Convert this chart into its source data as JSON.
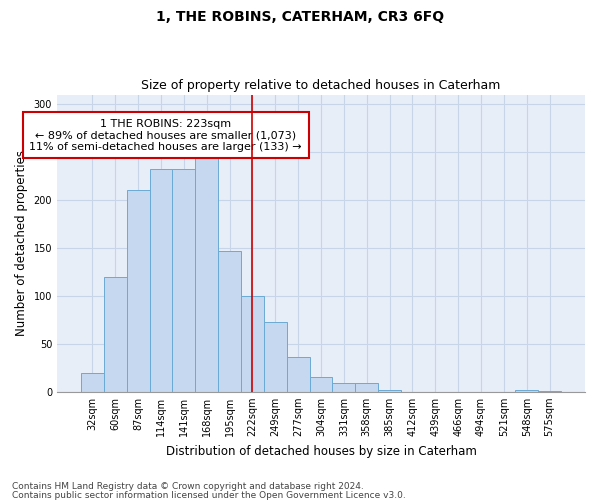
{
  "title": "1, THE ROBINS, CATERHAM, CR3 6FQ",
  "subtitle": "Size of property relative to detached houses in Caterham",
  "xlabel": "Distribution of detached houses by size in Caterham",
  "ylabel": "Number of detached properties",
  "categories": [
    "32sqm",
    "60sqm",
    "87sqm",
    "114sqm",
    "141sqm",
    "168sqm",
    "195sqm",
    "222sqm",
    "249sqm",
    "277sqm",
    "304sqm",
    "331sqm",
    "358sqm",
    "385sqm",
    "412sqm",
    "439sqm",
    "466sqm",
    "494sqm",
    "521sqm",
    "548sqm",
    "575sqm"
  ],
  "values": [
    20,
    120,
    210,
    232,
    232,
    248,
    147,
    100,
    73,
    36,
    15,
    9,
    9,
    2,
    0,
    0,
    0,
    0,
    0,
    2,
    1
  ],
  "bar_color": "#c5d8f0",
  "bar_edge_color": "#6aaad4",
  "annotation_text": "1 THE ROBINS: 223sqm\n← 89% of detached houses are smaller (1,073)\n11% of semi-detached houses are larger (133) →",
  "annotation_box_color": "#ffffff",
  "annotation_box_edge_color": "#cc0000",
  "red_line_index": 7,
  "ylim": [
    0,
    310
  ],
  "yticks": [
    0,
    50,
    100,
    150,
    200,
    250,
    300
  ],
  "grid_color": "#c8d4e8",
  "background_color": "#e8eef8",
  "footer_line1": "Contains HM Land Registry data © Crown copyright and database right 2024.",
  "footer_line2": "Contains public sector information licensed under the Open Government Licence v3.0.",
  "title_fontsize": 10,
  "subtitle_fontsize": 9,
  "axis_label_fontsize": 8.5,
  "tick_fontsize": 7,
  "annotation_fontsize": 8,
  "footer_fontsize": 6.5
}
